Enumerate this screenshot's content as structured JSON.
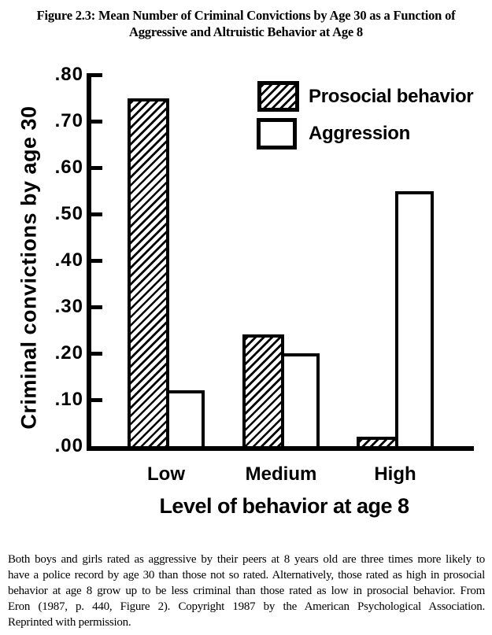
{
  "figure": {
    "title_line1": "Figure 2.3: Mean Number of Criminal Convictions by Age 30 as a Function of",
    "title_line2": "Aggressive and Altruistic Behavior at Age 8",
    "caption_lines": [
      "Both boys and girls rated as aggressive by their peers at 8 years old are three times more likely to",
      "have a police record by age 30 than those not so rated. Alternatively, those rated as high in prosocial",
      "behavior at age 8 grow up to be less criminal than those rated as low in prosocial behavior. From",
      "Eron (1987, p. 440, Figure 2). Copyright 1987 by the American Psychological Association.",
      "Reprinted with permission."
    ]
  },
  "chart_data": {
    "type": "bar",
    "categories": [
      "Low",
      "Medium",
      "High"
    ],
    "series": [
      {
        "name": "Prosocial behavior",
        "style": "hatched",
        "values": [
          0.75,
          0.24,
          0.02
        ]
      },
      {
        "name": "Aggression",
        "style": "open",
        "values": [
          0.12,
          0.2,
          0.55
        ]
      }
    ],
    "xlabel": "Level of behavior at age 8",
    "ylabel": "Criminal convictions by age 30",
    "ylim": [
      0,
      0.8
    ],
    "ytick_step": 0.1,
    "ytick_labels": [
      ".00",
      ".10",
      ".20",
      ".30",
      ".40",
      ".50",
      ".60",
      ".70",
      ".80"
    ],
    "legend_position": "upper-right",
    "grid": false,
    "ink_color": "#000000",
    "paper_color": "#ffffff"
  }
}
